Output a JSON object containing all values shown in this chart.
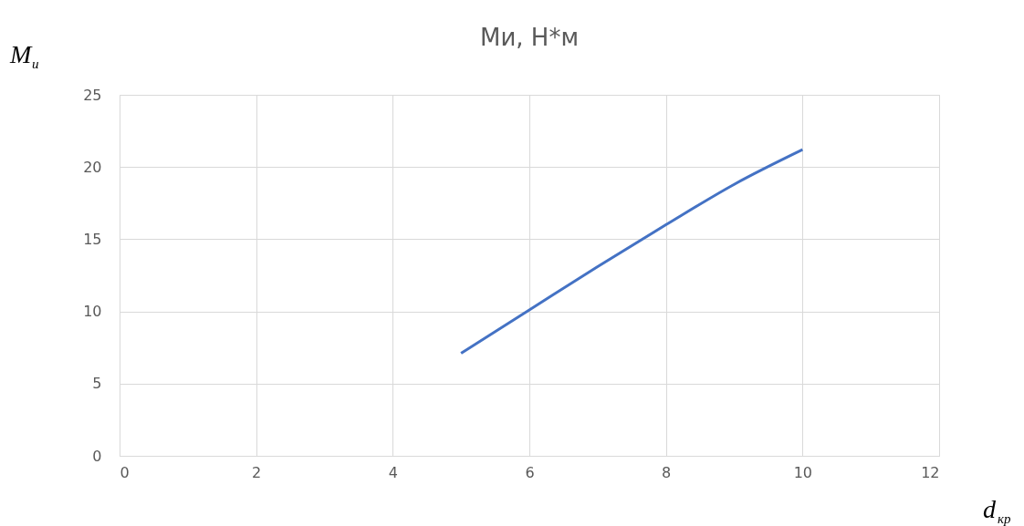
{
  "chart_data": {
    "type": "line",
    "title": "Ми, Н*м",
    "xlabel": "d$_{кр}$",
    "ylabel": "M$_{и}$",
    "x": [
      5,
      6,
      7,
      8,
      9,
      10
    ],
    "series": [
      {
        "color": "#4472c4",
        "values": [
          7.1,
          10.1,
          13.1,
          16.0,
          18.8,
          21.2
        ]
      }
    ],
    "xlim": [
      0,
      12
    ],
    "xticks": [
      0,
      2,
      4,
      6,
      8,
      10,
      12
    ],
    "ylim": [
      0,
      25
    ],
    "yticks": [
      0,
      5,
      10,
      15,
      20,
      25
    ],
    "grid": true,
    "legend": false,
    "marker": "none",
    "line_style": "solid"
  }
}
